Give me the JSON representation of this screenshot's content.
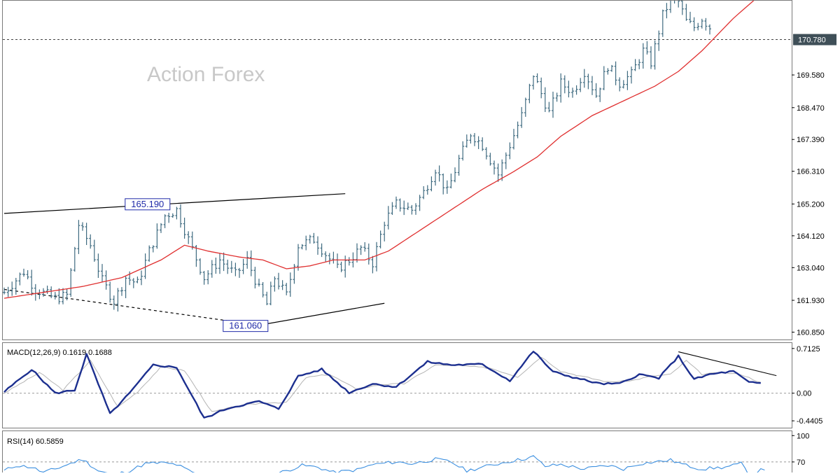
{
  "watermark": "Action Forex",
  "colors": {
    "bars": "#3f6b80",
    "sma": "#e03030",
    "macd_line": "#1c2f8f",
    "macd_signal": "#b4b4b4",
    "rsi_line": "#3b8fe0",
    "current_price_tag_bg": "#3f4f58",
    "annotation_border": "#1f2aa8",
    "trendline": "#000000"
  },
  "chart_data": [
    {
      "type": "ohlc",
      "name": "price",
      "current_price_label": "170.780",
      "current_price": 170.78,
      "ylim": [
        160.6,
        172.1
      ],
      "y_ticks": [
        "169.580",
        "168.470",
        "167.390",
        "166.310",
        "165.200",
        "164.120",
        "163.040",
        "161.930",
        "160.850"
      ],
      "bar_count": 200,
      "annotations": [
        {
          "label": "165.190",
          "value": 165.19,
          "bar": 43
        },
        {
          "label": "161.060",
          "value": 161.06,
          "bar": 68
        }
      ],
      "trendlines": [
        {
          "style": "solid",
          "from": {
            "bar": 0,
            "value": 164.88
          },
          "to": {
            "bar": 87,
            "value": 165.55
          }
        },
        {
          "style": "dashed",
          "from": {
            "bar": 0,
            "value": 162.3
          },
          "to": {
            "bar": 67,
            "value": 161.05
          }
        },
        {
          "style": "solid",
          "from": {
            "bar": 57,
            "value": 160.9
          },
          "to": {
            "bar": 97,
            "value": 161.83
          }
        }
      ],
      "anchors": [
        [
          0,
          162.2
        ],
        [
          5,
          162.9
        ],
        [
          8,
          162.3
        ],
        [
          13,
          162.0
        ],
        [
          16,
          162.1
        ],
        [
          19,
          164.5
        ],
        [
          22,
          163.8
        ],
        [
          25,
          162.6
        ],
        [
          28,
          161.9
        ],
        [
          31,
          162.7
        ],
        [
          34,
          162.5
        ],
        [
          37,
          163.6
        ],
        [
          41,
          164.8
        ],
        [
          44,
          165.0
        ],
        [
          47,
          164.0
        ],
        [
          51,
          162.7
        ],
        [
          55,
          163.3
        ],
        [
          59,
          162.8
        ],
        [
          62,
          163.3
        ],
        [
          65,
          162.3
        ],
        [
          67,
          161.8
        ],
        [
          69,
          162.7
        ],
        [
          72,
          162.1
        ],
        [
          75,
          163.8
        ],
        [
          79,
          164.0
        ],
        [
          82,
          163.5
        ],
        [
          85,
          163.0
        ],
        [
          88,
          163.3
        ],
        [
          91,
          163.7
        ],
        [
          94,
          163.2
        ],
        [
          97,
          164.6
        ],
        [
          100,
          165.2
        ],
        [
          104,
          165.0
        ],
        [
          107,
          165.6
        ],
        [
          110,
          166.4
        ],
        [
          113,
          165.6
        ],
        [
          116,
          166.7
        ],
        [
          119,
          167.6
        ],
        [
          122,
          167.2
        ],
        [
          126,
          166.2
        ],
        [
          129,
          167.2
        ],
        [
          132,
          168.2
        ],
        [
          135,
          169.6
        ],
        [
          139,
          168.3
        ],
        [
          142,
          169.3
        ],
        [
          145,
          169.0
        ],
        [
          148,
          169.7
        ],
        [
          151,
          168.9
        ],
        [
          154,
          169.9
        ],
        [
          157,
          169.3
        ],
        [
          160,
          169.6
        ],
        [
          163,
          170.4
        ],
        [
          165,
          170.0
        ],
        [
          168,
          171.6
        ],
        [
          171,
          172.4
        ],
        [
          174,
          171.4
        ],
        [
          176,
          171.2
        ],
        [
          178,
          171.5
        ],
        [
          180,
          171.2
        ]
      ],
      "series": [
        {
          "name": "SMA",
          "anchors": [
            [
              0,
              162.0
            ],
            [
              10,
              162.2
            ],
            [
              20,
              162.4
            ],
            [
              30,
              162.7
            ],
            [
              40,
              163.3
            ],
            [
              46,
              163.8
            ],
            [
              52,
              163.6
            ],
            [
              60,
              163.4
            ],
            [
              66,
              163.3
            ],
            [
              72,
              163.0
            ],
            [
              78,
              163.1
            ],
            [
              84,
              163.3
            ],
            [
              92,
              163.3
            ],
            [
              98,
              163.6
            ],
            [
              106,
              164.3
            ],
            [
              114,
              165.0
            ],
            [
              122,
              165.7
            ],
            [
              130,
              166.3
            ],
            [
              136,
              166.8
            ],
            [
              142,
              167.5
            ],
            [
              150,
              168.2
            ],
            [
              158,
              168.7
            ],
            [
              166,
              169.2
            ],
            [
              172,
              169.7
            ],
            [
              178,
              170.4
            ],
            [
              186,
              171.5
            ],
            [
              192,
              172.2
            ]
          ]
        }
      ]
    },
    {
      "type": "line",
      "name": "macd",
      "title": "MACD(12,26,9) 0.1619 0.1688",
      "ylim": [
        -0.55,
        0.8
      ],
      "y_ticks": [
        {
          "label": "0.7125",
          "value": 0.7125
        },
        {
          "label": "0.00",
          "value": 0.0
        },
        {
          "label": "-0.4405",
          "value": -0.4405
        }
      ],
      "series": [
        {
          "name": "MACD",
          "anchors": [
            [
              0,
              0.02
            ],
            [
              7,
              0.38
            ],
            [
              13,
              0.0
            ],
            [
              18,
              0.05
            ],
            [
              21,
              0.62
            ],
            [
              27,
              -0.33
            ],
            [
              32,
              0.0
            ],
            [
              38,
              0.45
            ],
            [
              44,
              0.41
            ],
            [
              51,
              -0.4
            ],
            [
              57,
              -0.24
            ],
            [
              65,
              -0.13
            ],
            [
              70,
              -0.25
            ],
            [
              75,
              0.27
            ],
            [
              81,
              0.38
            ],
            [
              88,
              0.01
            ],
            [
              94,
              0.15
            ],
            [
              100,
              0.1
            ],
            [
              108,
              0.5
            ],
            [
              114,
              0.45
            ],
            [
              122,
              0.46
            ],
            [
              129,
              0.2
            ],
            [
              135,
              0.67
            ],
            [
              140,
              0.34
            ],
            [
              146,
              0.24
            ],
            [
              152,
              0.15
            ],
            [
              157,
              0.15
            ],
            [
              162,
              0.3
            ],
            [
              167,
              0.24
            ],
            [
              172,
              0.59
            ],
            [
              176,
              0.22
            ],
            [
              180,
              0.3
            ],
            [
              186,
              0.35
            ],
            [
              190,
              0.17
            ],
            [
              193,
              0.16
            ]
          ]
        },
        {
          "name": "Signal",
          "anchors": [
            [
              0,
              0.0
            ],
            [
              9,
              0.33
            ],
            [
              15,
              0.05
            ],
            [
              22,
              0.52
            ],
            [
              29,
              -0.22
            ],
            [
              34,
              0.02
            ],
            [
              40,
              0.42
            ],
            [
              46,
              0.36
            ],
            [
              53,
              -0.3
            ],
            [
              60,
              -0.2
            ],
            [
              67,
              -0.15
            ],
            [
              72,
              -0.15
            ],
            [
              77,
              0.25
            ],
            [
              83,
              0.3
            ],
            [
              90,
              0.06
            ],
            [
              96,
              0.14
            ],
            [
              102,
              0.15
            ],
            [
              110,
              0.45
            ],
            [
              116,
              0.44
            ],
            [
              124,
              0.4
            ],
            [
              131,
              0.26
            ],
            [
              137,
              0.58
            ],
            [
              142,
              0.35
            ],
            [
              148,
              0.26
            ],
            [
              154,
              0.18
            ],
            [
              160,
              0.2
            ],
            [
              165,
              0.27
            ],
            [
              170,
              0.3
            ],
            [
              174,
              0.52
            ],
            [
              178,
              0.3
            ],
            [
              183,
              0.33
            ],
            [
              188,
              0.3
            ],
            [
              193,
              0.17
            ]
          ]
        }
      ],
      "trendlines": [
        {
          "style": "solid",
          "from": {
            "bar": 172,
            "value": 0.66
          },
          "to": {
            "bar": 197,
            "value": 0.28
          }
        }
      ]
    },
    {
      "type": "line",
      "name": "rsi",
      "title": "RSI(14) 60.5859",
      "ylim": [
        50,
        105
      ],
      "y_ticks": [
        {
          "label": "100",
          "value": 100
        },
        {
          "label": "70",
          "value": 70
        }
      ],
      "reference_lines": [
        70
      ],
      "series": [
        {
          "name": "RSI",
          "anchors": [
            [
              0,
              60
            ],
            [
              3,
              66
            ],
            [
              7,
              64
            ],
            [
              10,
              58
            ],
            [
              13,
              62
            ],
            [
              18,
              70
            ],
            [
              20,
              73
            ],
            [
              24,
              60
            ],
            [
              28,
              55
            ],
            [
              32,
              60
            ],
            [
              36,
              68
            ],
            [
              40,
              69
            ],
            [
              44,
              67
            ],
            [
              48,
              58
            ],
            [
              54,
              52
            ],
            [
              60,
              56
            ],
            [
              66,
              52
            ],
            [
              72,
              60
            ],
            [
              76,
              66
            ],
            [
              80,
              64
            ],
            [
              84,
              58
            ],
            [
              90,
              61
            ],
            [
              94,
              67
            ],
            [
              100,
              70
            ],
            [
              104,
              68
            ],
            [
              110,
              73
            ],
            [
              114,
              70
            ],
            [
              118,
              60
            ],
            [
              124,
              66
            ],
            [
              128,
              70
            ],
            [
              132,
              73
            ],
            [
              135,
              76
            ],
            [
              138,
              65
            ],
            [
              142,
              67
            ],
            [
              148,
              62
            ],
            [
              154,
              66
            ],
            [
              158,
              62
            ],
            [
              162,
              68
            ],
            [
              166,
              70
            ],
            [
              170,
              72
            ],
            [
              174,
              66
            ],
            [
              178,
              62
            ],
            [
              184,
              64
            ],
            [
              188,
              68
            ],
            [
              190,
              56
            ],
            [
              194,
              62
            ]
          ]
        }
      ]
    }
  ]
}
